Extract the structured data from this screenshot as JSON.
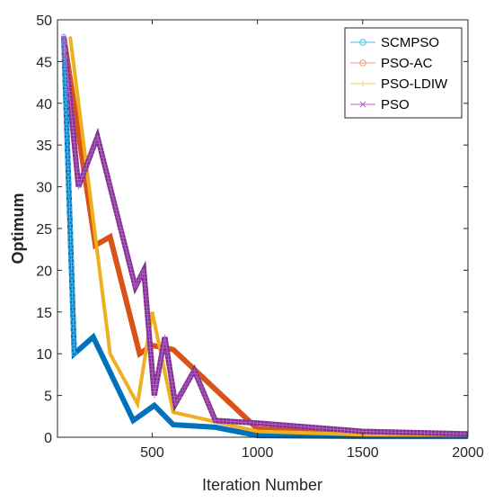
{
  "chart_data": {
    "type": "line",
    "xlabel": "Iteration Number",
    "ylabel": "Optimum",
    "xlim": [
      50,
      2000
    ],
    "ylim": [
      0,
      50
    ],
    "xticks": [
      500,
      1000,
      1500,
      2000
    ],
    "yticks": [
      0,
      5,
      10,
      15,
      20,
      25,
      30,
      35,
      40,
      45,
      50
    ],
    "grid": false,
    "legend_position": "top-right",
    "series": [
      {
        "name": "SCMPSO",
        "color": "#0072BD",
        "x": [
          80,
          130,
          220,
          410,
          510,
          600,
          800,
          1000,
          1500,
          2000
        ],
        "y": [
          48,
          10,
          12,
          2,
          3.8,
          1.5,
          1.2,
          0.2,
          0.1,
          0.1
        ]
      },
      {
        "name": "PSO-AC",
        "color": "#D95319",
        "x": [
          80,
          230,
          300,
          440,
          500,
          600,
          1000,
          1500,
          2000
        ],
        "y": [
          48,
          23,
          24,
          10,
          11,
          10.5,
          1,
          0.4,
          0.3
        ]
      },
      {
        "name": "PSO-LDIW",
        "color": "#EDB120",
        "x": [
          110,
          230,
          300,
          430,
          500,
          600,
          1000,
          1500,
          2000
        ],
        "y": [
          48,
          24,
          10,
          4,
          15,
          3,
          0.7,
          0.3,
          0.2
        ]
      },
      {
        "name": "PSO",
        "color": "#7E2F8E",
        "x": [
          80,
          150,
          240,
          420,
          460,
          510,
          560,
          610,
          700,
          800,
          1000,
          1500,
          2000
        ],
        "y": [
          48,
          30,
          36,
          18,
          20,
          5,
          12,
          4,
          8,
          2,
          1.7,
          0.7,
          0.4
        ]
      }
    ],
    "scmpso_marker_trace": {
      "x": [
        80,
        130
      ],
      "y": [
        48,
        10
      ]
    }
  }
}
